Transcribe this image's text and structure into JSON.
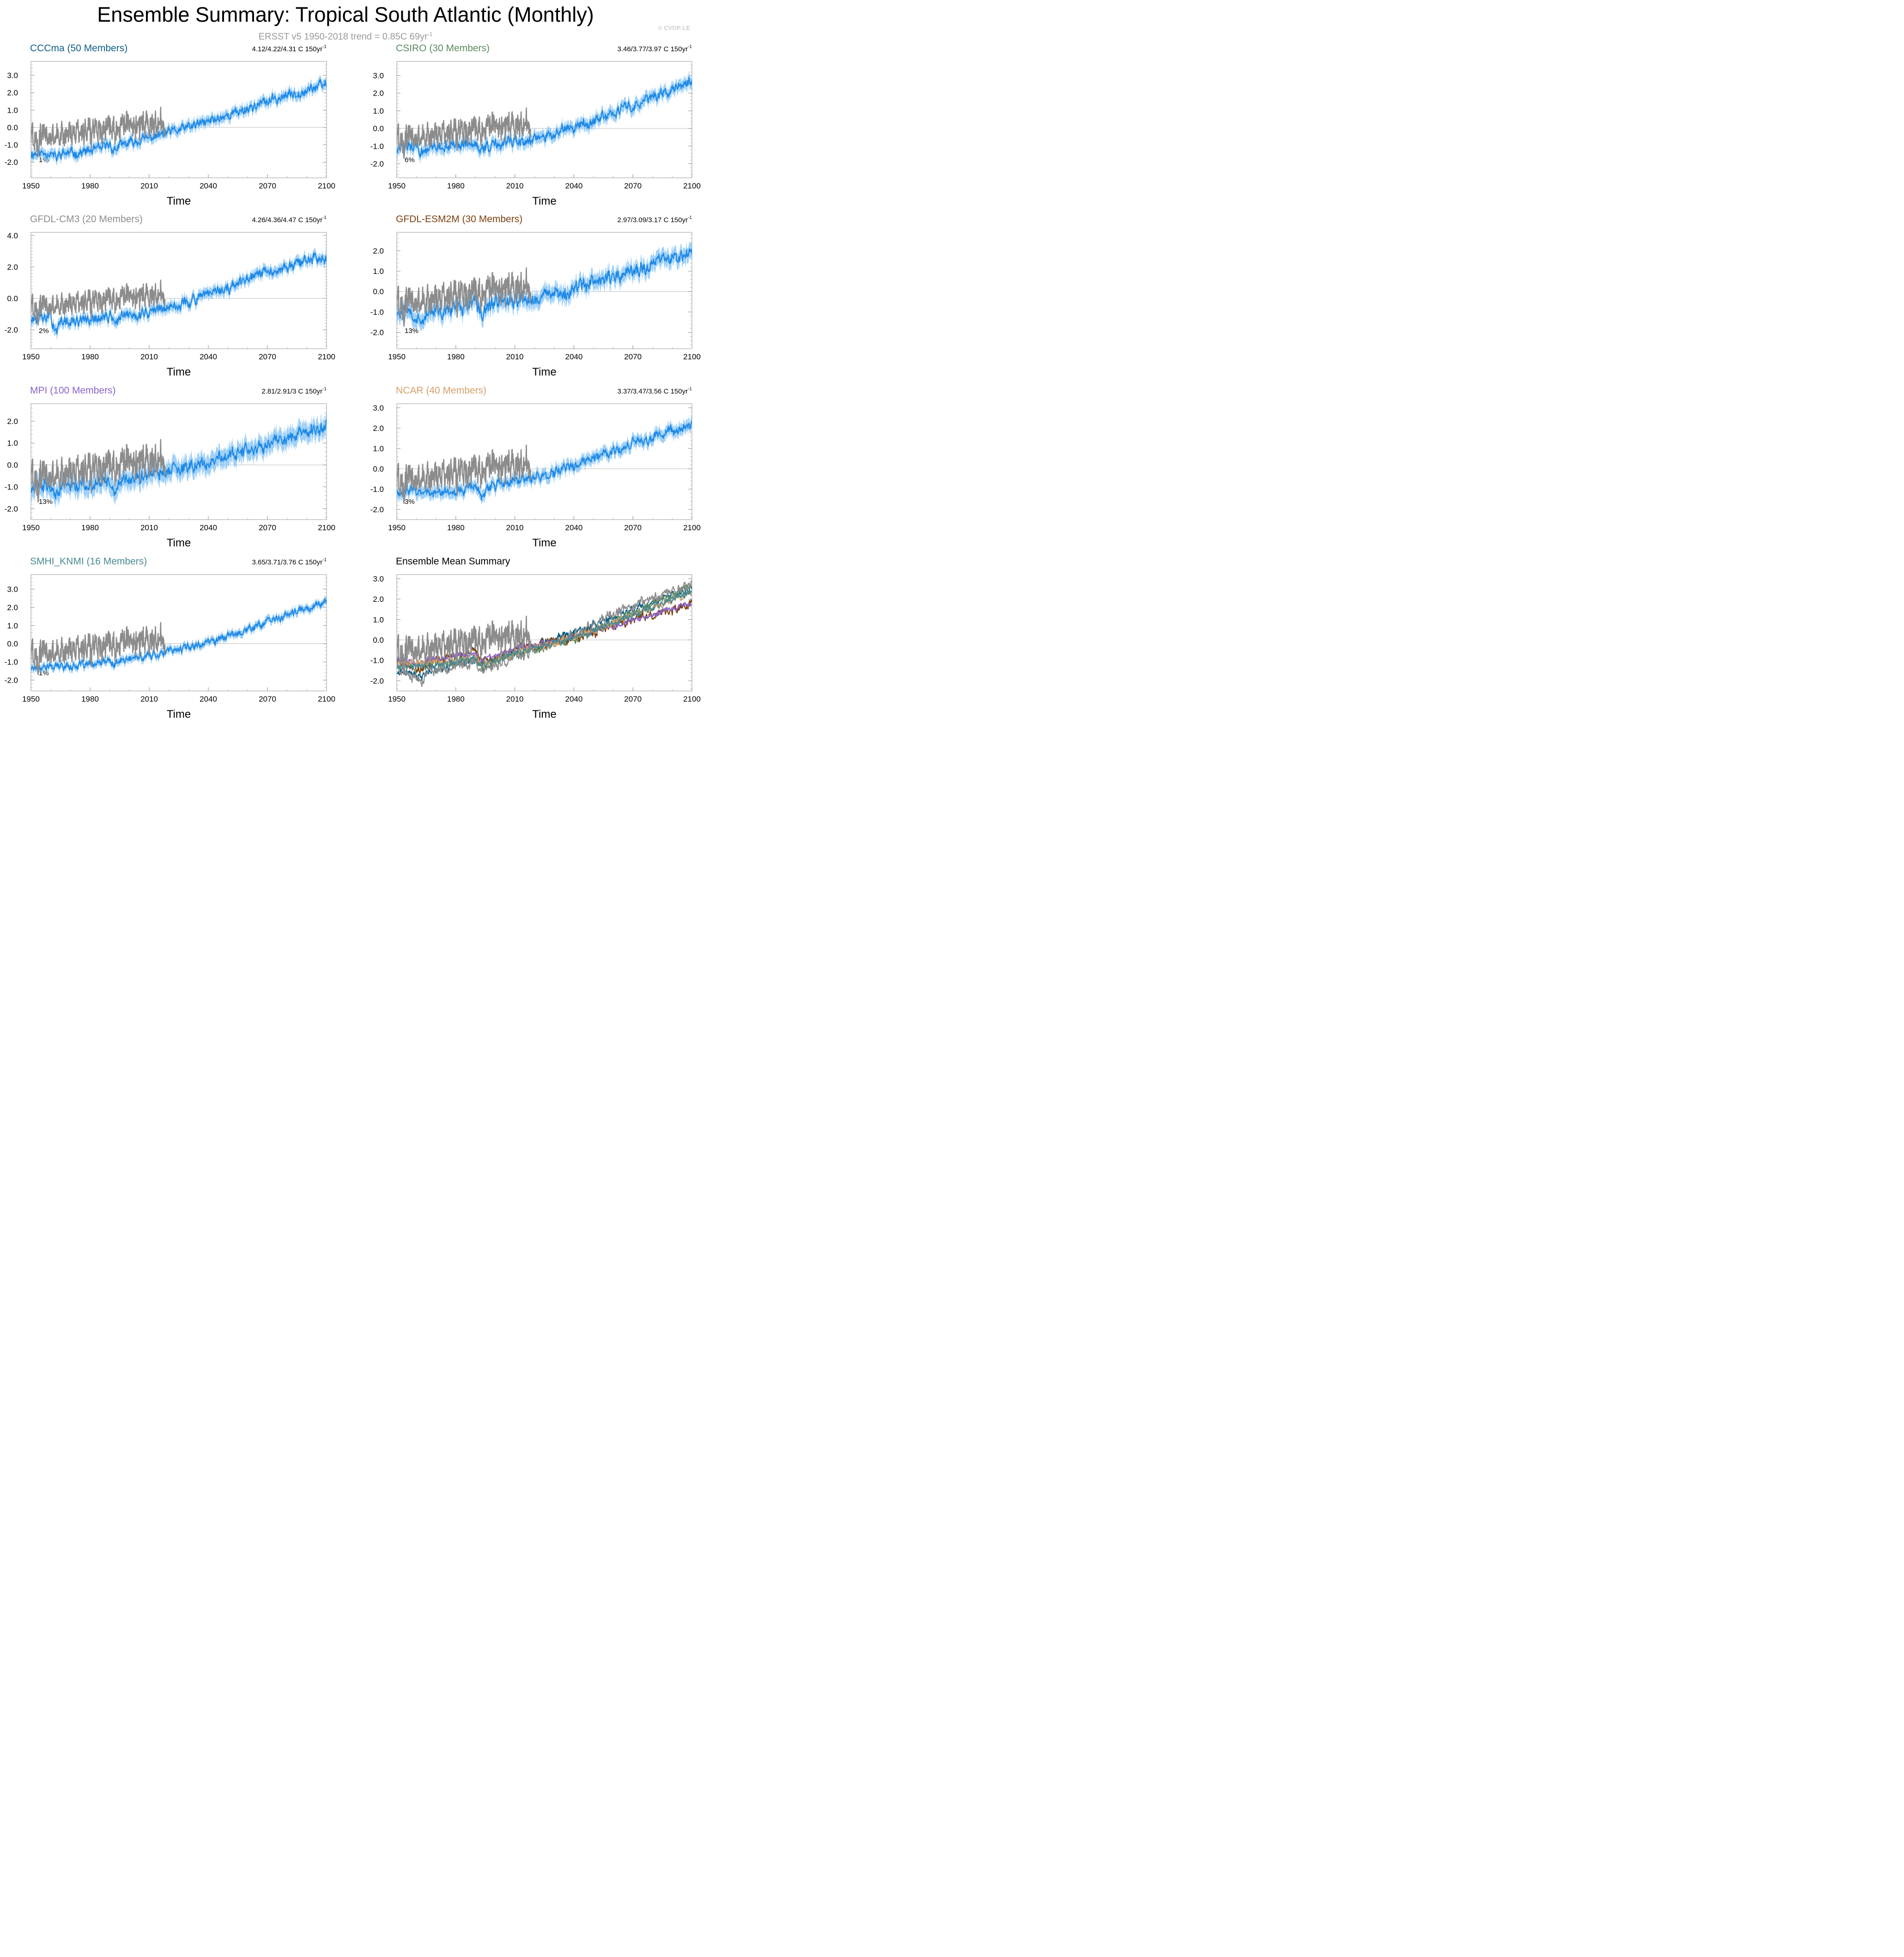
{
  "title": "Ensemble Summary: Tropical South Atlantic (Monthly)",
  "subtitle": {
    "text": "ERSST v5 1950-2018 trend = 0.85C 69yr",
    "sup": "-1"
  },
  "watermark": "© CVDP-LE",
  "colors": {
    "ensemble": "#1e88e5",
    "ensemble_band": "#7ec0f5",
    "observed": "#8c8c8c"
  },
  "chart_data": [
    {
      "type": "line",
      "title": "CCCma (50 Members)",
      "title_color": "#0c5f86",
      "trend_label": "4.12/4.22/4.31 C 150yr",
      "trend_sup": "-1",
      "percent_label": "1%",
      "xlabel": "Time",
      "xlim": [
        1950,
        2100
      ],
      "xticks": [
        1950,
        1980,
        2010,
        2040,
        2070,
        2100
      ],
      "ylim": [
        -2.9,
        3.8
      ],
      "yticks": [
        -2,
        -1,
        0,
        1,
        2,
        3
      ],
      "ytick_labels": [
        "-2.0",
        "-1.0",
        "0.0",
        "1.0",
        "2.0",
        "3.0"
      ],
      "series": [
        {
          "name": "Ensemble",
          "x": [
            1950,
            1960,
            1963,
            1965,
            1975,
            1985,
            1990,
            1992,
            1995,
            2010,
            2025,
            2040,
            2055,
            2070,
            2085,
            2100
          ],
          "y": [
            -1.5,
            -1.45,
            -1.8,
            -1.5,
            -1.45,
            -1.25,
            -0.95,
            -1.35,
            -1.05,
            -0.6,
            -0.15,
            0.35,
            0.9,
            1.5,
            2.0,
            2.5
          ],
          "spread": 0.35,
          "noise": 0.2,
          "seed": 11
        },
        {
          "name": "ERSST v5",
          "x": [
            1950,
            1960,
            1970,
            1980,
            1990,
            2000,
            2010,
            2018
          ],
          "y": [
            -0.6,
            -0.5,
            -0.3,
            -0.1,
            0.1,
            0.1,
            0.2,
            0.3
          ],
          "noise": 0.6,
          "seed": 101
        }
      ]
    },
    {
      "type": "line",
      "title": "CSIRO (30 Members)",
      "title_color": "#5b8a5e",
      "trend_label": "3.46/3.77/3.97 C 150yr",
      "trend_sup": "-1",
      "percent_label": "6%",
      "xlabel": "Time",
      "xlim": [
        1950,
        2100
      ],
      "xticks": [
        1950,
        1980,
        2010,
        2040,
        2070,
        2100
      ],
      "ylim": [
        -2.8,
        3.8
      ],
      "yticks": [
        -2,
        -1,
        0,
        1,
        2,
        3
      ],
      "ytick_labels": [
        "-2.0",
        "-1.0",
        "0.0",
        "1.0",
        "2.0",
        "3.0"
      ],
      "series": [
        {
          "name": "Ensemble",
          "x": [
            1950,
            1960,
            1963,
            1966,
            1975,
            1985,
            1990,
            1993,
            1996,
            2010,
            2025,
            2040,
            2055,
            2070,
            2085,
            2100
          ],
          "y": [
            -1.05,
            -1.0,
            -1.5,
            -1.1,
            -1.0,
            -0.95,
            -0.9,
            -1.3,
            -1.0,
            -0.75,
            -0.45,
            0.05,
            0.6,
            1.3,
            2.0,
            2.7
          ],
          "spread": 0.4,
          "noise": 0.22,
          "seed": 12
        },
        {
          "name": "ERSST v5",
          "x": [
            1950,
            1960,
            1970,
            1980,
            1990,
            2000,
            2010,
            2018
          ],
          "y": [
            -0.6,
            -0.5,
            -0.3,
            -0.1,
            0.1,
            0.1,
            0.2,
            0.3
          ],
          "noise": 0.6,
          "seed": 101
        }
      ]
    },
    {
      "type": "line",
      "title": "GFDL-CM3 (20 Members)",
      "title_color": "#8c8c8c",
      "trend_label": "4.26/4.36/4.47 C 150yr",
      "trend_sup": "-1",
      "percent_label": "2%",
      "xlabel": "Time",
      "xlim": [
        1950,
        2100
      ],
      "xticks": [
        1950,
        1980,
        2010,
        2040,
        2070,
        2100
      ],
      "ylim": [
        -3.2,
        4.2
      ],
      "yticks": [
        -2,
        0,
        2,
        4
      ],
      "ytick_labels": [
        "-2.0",
        "0.0",
        "2.0",
        "4.0"
      ],
      "series": [
        {
          "name": "Ensemble",
          "x": [
            1950,
            1960,
            1963,
            1966,
            1975,
            1985,
            1990,
            1993,
            1996,
            2010,
            2025,
            2040,
            2055,
            2070,
            2085,
            2100
          ],
          "y": [
            -1.3,
            -1.25,
            -2.0,
            -1.5,
            -1.45,
            -1.3,
            -1.1,
            -1.5,
            -1.2,
            -0.85,
            -0.4,
            0.2,
            0.9,
            1.7,
            2.2,
            2.75
          ],
          "spread": 0.4,
          "noise": 0.25,
          "seed": 13
        },
        {
          "name": "ERSST v5",
          "x": [
            1950,
            1960,
            1970,
            1980,
            1990,
            2000,
            2010,
            2018
          ],
          "y": [
            -0.6,
            -0.5,
            -0.3,
            -0.1,
            0.1,
            0.1,
            0.2,
            0.3
          ],
          "noise": 0.6,
          "seed": 101
        }
      ]
    },
    {
      "type": "line",
      "title": "GFDL-ESM2M (30 Members)",
      "title_color": "#7b3f0f",
      "trend_label": "2.97/3.09/3.17 C 150yr",
      "trend_sup": "-1",
      "percent_label": "13%",
      "xlabel": "Time",
      "xlim": [
        1950,
        2100
      ],
      "xticks": [
        1950,
        1980,
        2010,
        2040,
        2070,
        2100
      ],
      "ylim": [
        -2.8,
        2.9
      ],
      "yticks": [
        -2,
        -1,
        0,
        1,
        2
      ],
      "ytick_labels": [
        "-2.0",
        "-1.0",
        "0.0",
        "1.0",
        "2.0"
      ],
      "series": [
        {
          "name": "Ensemble",
          "x": [
            1950,
            1958,
            1963,
            1966,
            1975,
            1985,
            1990,
            1993,
            1996,
            2010,
            2025,
            2040,
            2055,
            2070,
            2085,
            2100
          ],
          "y": [
            -0.95,
            -1.0,
            -1.5,
            -1.1,
            -0.95,
            -0.75,
            -0.55,
            -1.0,
            -0.65,
            -0.45,
            -0.25,
            0.1,
            0.55,
            1.0,
            1.45,
            1.8
          ],
          "spread": 0.45,
          "noise": 0.25,
          "seed": 14
        },
        {
          "name": "ERSST v5",
          "x": [
            1950,
            1960,
            1970,
            1980,
            1990,
            2000,
            2010,
            2018
          ],
          "y": [
            -0.6,
            -0.5,
            -0.3,
            -0.1,
            0.1,
            0.1,
            0.2,
            0.3
          ],
          "noise": 0.6,
          "seed": 101
        }
      ]
    },
    {
      "type": "line",
      "title": "MPI (100 Members)",
      "title_color": "#8a63cc",
      "trend_label": "2.81/2.91/3 C 150yr",
      "trend_sup": "-1",
      "percent_label": "13%",
      "xlabel": "Time",
      "xlim": [
        1950,
        2100
      ],
      "xticks": [
        1950,
        1980,
        2010,
        2040,
        2070,
        2100
      ],
      "ylim": [
        -2.5,
        2.8
      ],
      "yticks": [
        -2,
        -1,
        0,
        1,
        2
      ],
      "ytick_labels": [
        "-2.0",
        "-1.0",
        "0.0",
        "1.0",
        "2.0"
      ],
      "series": [
        {
          "name": "Ensemble",
          "x": [
            1950,
            1958,
            1963,
            1966,
            1975,
            1985,
            1990,
            1993,
            1996,
            2010,
            2025,
            2040,
            2055,
            2070,
            2085,
            2100
          ],
          "y": [
            -1.0,
            -0.95,
            -1.35,
            -1.0,
            -0.95,
            -0.85,
            -0.65,
            -1.1,
            -0.75,
            -0.45,
            -0.2,
            0.15,
            0.55,
            0.95,
            1.4,
            1.8
          ],
          "spread": 0.5,
          "noise": 0.2,
          "seed": 15
        },
        {
          "name": "ERSST v5",
          "x": [
            1950,
            1960,
            1970,
            1980,
            1990,
            2000,
            2010,
            2018
          ],
          "y": [
            -0.6,
            -0.5,
            -0.3,
            -0.1,
            0.1,
            0.1,
            0.2,
            0.3
          ],
          "noise": 0.6,
          "seed": 101
        }
      ]
    },
    {
      "type": "line",
      "title": "NCAR (40 Members)",
      "title_color": "#d4a06a",
      "trend_label": "3.37/3.47/3.56 C 150yr",
      "trend_sup": "-1",
      "percent_label": "3%",
      "xlabel": "Time",
      "xlim": [
        1950,
        2100
      ],
      "xticks": [
        1950,
        1980,
        2010,
        2040,
        2070,
        2100
      ],
      "ylim": [
        -2.5,
        3.2
      ],
      "yticks": [
        -2,
        -1,
        0,
        1,
        2,
        3
      ],
      "ytick_labels": [
        "-2.0",
        "-1.0",
        "0.0",
        "1.0",
        "2.0",
        "3.0"
      ],
      "series": [
        {
          "name": "Ensemble",
          "x": [
            1950,
            1960,
            1975,
            1985,
            1990,
            1993,
            1996,
            2010,
            2025,
            2040,
            2055,
            2070,
            2085,
            2100
          ],
          "y": [
            -1.1,
            -1.1,
            -1.1,
            -1.0,
            -0.85,
            -1.25,
            -0.9,
            -0.65,
            -0.3,
            0.1,
            0.65,
            1.2,
            1.7,
            2.1
          ],
          "spread": 0.35,
          "noise": 0.18,
          "seed": 16
        },
        {
          "name": "ERSST v5",
          "x": [
            1950,
            1960,
            1970,
            1980,
            1990,
            2000,
            2010,
            2018
          ],
          "y": [
            -0.6,
            -0.5,
            -0.3,
            -0.1,
            0.1,
            0.1,
            0.2,
            0.3
          ],
          "noise": 0.6,
          "seed": 101
        }
      ]
    },
    {
      "type": "line",
      "title": "SMHI_KNMI (16 Members)",
      "title_color": "#4a8a90",
      "trend_label": "3.65/3.71/3.76 C 150yr",
      "trend_sup": "-1",
      "percent_label": "1%",
      "xlabel": "Time",
      "xlim": [
        1950,
        2100
      ],
      "xticks": [
        1950,
        1980,
        2010,
        2040,
        2070,
        2100
      ],
      "ylim": [
        -2.6,
        3.8
      ],
      "yticks": [
        -2,
        -1,
        0,
        1,
        2,
        3
      ],
      "ytick_labels": [
        "-2.0",
        "-1.0",
        "0.0",
        "1.0",
        "2.0",
        "3.0"
      ],
      "series": [
        {
          "name": "Ensemble",
          "x": [
            1950,
            1960,
            1975,
            1985,
            1990,
            1992,
            1995,
            2010,
            2025,
            2040,
            2055,
            2070,
            2085,
            2100
          ],
          "y": [
            -1.3,
            -1.25,
            -1.2,
            -1.1,
            -0.9,
            -1.25,
            -0.95,
            -0.65,
            -0.3,
            0.1,
            0.6,
            1.2,
            1.75,
            2.35
          ],
          "spread": 0.25,
          "noise": 0.15,
          "seed": 17
        },
        {
          "name": "ERSST v5",
          "x": [
            1950,
            1960,
            1970,
            1980,
            1990,
            2000,
            2010,
            2018
          ],
          "y": [
            -0.6,
            -0.5,
            -0.3,
            -0.1,
            0.1,
            0.1,
            0.2,
            0.3
          ],
          "noise": 0.6,
          "seed": 101
        }
      ]
    },
    {
      "type": "line",
      "title": "Ensemble Mean Summary",
      "title_color": "#000000",
      "trend_label": "",
      "trend_sup": "",
      "percent_label": "",
      "xlabel": "Time",
      "xlim": [
        1950,
        2100
      ],
      "xticks": [
        1950,
        1980,
        2010,
        2040,
        2070,
        2100
      ],
      "ylim": [
        -2.5,
        3.2
      ],
      "yticks": [
        -2,
        -1,
        0,
        1,
        2,
        3
      ],
      "ytick_labels": [
        "-2.0",
        "-1.0",
        "0.0",
        "1.0",
        "2.0",
        "3.0"
      ],
      "series": [
        {
          "name": "CCCma",
          "color": "#0c5f86",
          "x": [
            1950,
            1963,
            1965,
            1990,
            1992,
            2010,
            2040,
            2070,
            2100
          ],
          "y": [
            -1.5,
            -1.8,
            -1.5,
            -0.95,
            -1.35,
            -0.6,
            0.35,
            1.5,
            2.5
          ],
          "noise": 0.15,
          "seed": 21
        },
        {
          "name": "CSIRO",
          "color": "#5b8a5e",
          "x": [
            1950,
            1963,
            1966,
            1990,
            1993,
            2010,
            2040,
            2070,
            2100
          ],
          "y": [
            -1.05,
            -1.5,
            -1.1,
            -0.9,
            -1.3,
            -0.75,
            0.05,
            1.3,
            2.7
          ],
          "noise": 0.15,
          "seed": 22
        },
        {
          "name": "GFDL-CM3",
          "color": "#8c8c8c",
          "x": [
            1950,
            1963,
            1966,
            1990,
            1993,
            2010,
            2040,
            2070,
            2100
          ],
          "y": [
            -1.3,
            -2.0,
            -1.5,
            -1.1,
            -1.5,
            -0.85,
            0.2,
            1.7,
            2.75
          ],
          "noise": 0.18,
          "seed": 23
        },
        {
          "name": "GFDL-ESM2M",
          "color": "#7b3f0f",
          "x": [
            1950,
            1963,
            1966,
            1990,
            1993,
            2010,
            2040,
            2070,
            2100
          ],
          "y": [
            -0.95,
            -1.5,
            -1.1,
            -0.55,
            -1.0,
            -0.45,
            0.1,
            1.0,
            1.75
          ],
          "noise": 0.15,
          "seed": 24
        },
        {
          "name": "MPI",
          "color": "#8a63cc",
          "x": [
            1950,
            1963,
            1966,
            1990,
            1993,
            2010,
            2040,
            2070,
            2100
          ],
          "y": [
            -0.9,
            -1.2,
            -0.95,
            -0.65,
            -1.0,
            -0.45,
            0.15,
            0.95,
            1.8
          ],
          "noise": 0.1,
          "seed": 25
        },
        {
          "name": "NCAR",
          "color": "#d4a06a",
          "x": [
            1950,
            1975,
            1990,
            1993,
            2010,
            2040,
            2070,
            2100
          ],
          "y": [
            -1.1,
            -1.1,
            -0.85,
            -1.25,
            -0.65,
            0.1,
            1.2,
            2.3
          ],
          "noise": 0.12,
          "seed": 26
        },
        {
          "name": "SMHI_KNMI",
          "color": "#4a8a90",
          "x": [
            1950,
            1975,
            1990,
            1992,
            2010,
            2040,
            2070,
            2100
          ],
          "y": [
            -1.3,
            -1.2,
            -0.9,
            -1.25,
            -0.65,
            0.1,
            1.2,
            2.4
          ],
          "noise": 0.12,
          "seed": 27
        },
        {
          "name": "ERSST v5",
          "color": "#8c8c8c",
          "x": [
            1950,
            1960,
            1970,
            1980,
            1990,
            2000,
            2010,
            2018
          ],
          "y": [
            -0.6,
            -0.5,
            -0.3,
            -0.1,
            0.1,
            0.1,
            0.2,
            0.3
          ],
          "noise": 0.6,
          "seed": 101
        }
      ]
    }
  ]
}
